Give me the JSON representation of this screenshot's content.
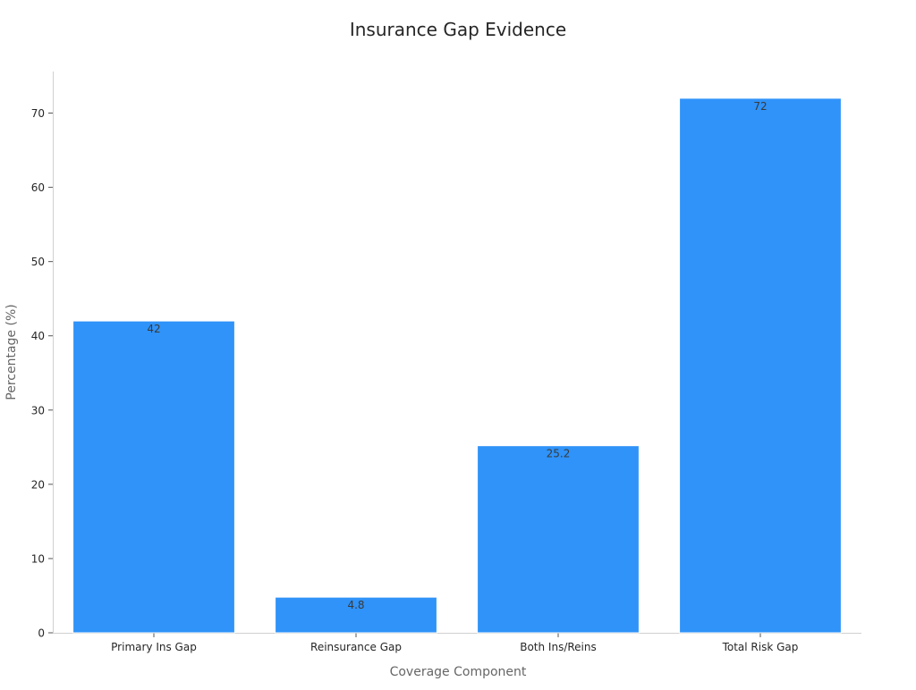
{
  "chart_data": {
    "type": "bar",
    "title": "Insurance Gap Evidence",
    "xlabel": "Coverage Component",
    "ylabel": "Percentage (%)",
    "categories": [
      "Primary Ins Gap",
      "Reinsurance Gap",
      "Both Ins/Reins",
      "Total Risk Gap"
    ],
    "values": [
      42,
      4.8,
      25.2,
      72
    ],
    "data_labels": [
      "42",
      "4.8",
      "25.2",
      "72"
    ],
    "ylim": [
      0,
      75.6
    ],
    "yticks": [
      0,
      10,
      20,
      30,
      40,
      50,
      60,
      70
    ],
    "grid": false,
    "bar_color": "#2f93f9",
    "bar_edge_color": "#ffffff"
  }
}
